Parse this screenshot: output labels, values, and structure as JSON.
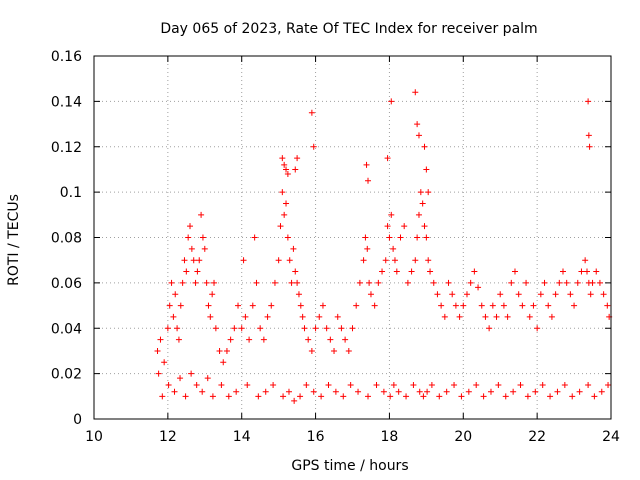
{
  "chart_data": {
    "type": "scatter",
    "title": "Day 065 of 2023, Rate Of TEC Index for receiver palm",
    "xlabel": "GPS time / hours",
    "ylabel": "ROTI / TECUs",
    "xlim": [
      10,
      24
    ],
    "ylim": [
      0,
      0.16
    ],
    "x_ticks": [
      10,
      12,
      14,
      16,
      18,
      20,
      22,
      24
    ],
    "x_tick_labels": [
      "10",
      "12",
      "14",
      "16",
      "18",
      "20",
      "22",
      "24"
    ],
    "y_ticks": [
      0,
      0.02,
      0.04,
      0.06,
      0.08,
      0.1,
      0.12,
      0.14,
      0.16
    ],
    "y_tick_labels": [
      "0",
      "0.02",
      "0.04",
      "0.06",
      "0.08",
      "0.1",
      "0.12",
      "0.14",
      "0.16"
    ],
    "grid": true,
    "marker": "+",
    "series": [
      {
        "name": "ROTI",
        "color": "#ff0000",
        "x": [
          11.72,
          11.75,
          11.8,
          11.9,
          12.0,
          12.05,
          12.1,
          12.15,
          12.2,
          12.25,
          12.3,
          12.35,
          12.4,
          12.45,
          12.5,
          12.55,
          12.6,
          12.65,
          12.7,
          12.75,
          12.8,
          12.85,
          12.9,
          12.95,
          13.0,
          13.05,
          13.1,
          13.15,
          13.2,
          13.25,
          13.3,
          13.4,
          13.5,
          13.6,
          13.7,
          13.8,
          13.9,
          14.0,
          14.05,
          14.1,
          14.2,
          14.3,
          14.35,
          14.4,
          14.5,
          14.6,
          14.7,
          14.8,
          14.9,
          15.0,
          15.05,
          15.1,
          15.15,
          15.2,
          15.25,
          15.3,
          15.35,
          15.4,
          15.45,
          15.5,
          15.55,
          15.6,
          15.65,
          15.7,
          15.8,
          15.9,
          16.0,
          16.1,
          16.2,
          16.3,
          16.4,
          16.5,
          16.6,
          16.7,
          16.8,
          16.9,
          17.0,
          17.1,
          17.2,
          17.3,
          17.35,
          17.4,
          17.45,
          17.5,
          17.6,
          17.7,
          17.8,
          17.9,
          17.95,
          18.0,
          18.05,
          18.1,
          18.15,
          18.2,
          18.3,
          18.4,
          18.5,
          18.6,
          18.7,
          18.75,
          18.8,
          18.85,
          18.9,
          18.95,
          19.0,
          19.05,
          19.1,
          19.2,
          19.3,
          19.4,
          19.5,
          19.6,
          19.7,
          19.8,
          19.9,
          20.0,
          20.1,
          20.2,
          20.3,
          20.4,
          20.5,
          20.6,
          20.7,
          20.8,
          20.9,
          21.0,
          21.1,
          21.2,
          21.3,
          21.4,
          21.5,
          21.6,
          21.7,
          21.8,
          21.9,
          22.0,
          22.1,
          22.2,
          22.3,
          22.4,
          22.5,
          22.6,
          22.7,
          22.8,
          22.9,
          23.0,
          23.1,
          23.2,
          23.3,
          23.35,
          23.4,
          23.45,
          23.5,
          23.6,
          23.7,
          23.8,
          23.9,
          23.95,
          11.85,
          12.02,
          12.18,
          12.33,
          12.48,
          12.63,
          12.78,
          12.93,
          13.08,
          13.22,
          13.45,
          13.65,
          13.85,
          14.15,
          14.45,
          14.65,
          14.85,
          15.12,
          15.28,
          15.42,
          15.58,
          15.75,
          15.95,
          16.15,
          16.35,
          16.55,
          16.75,
          16.95,
          17.15,
          17.42,
          17.65,
          17.85,
          18.02,
          18.12,
          18.25,
          18.45,
          18.65,
          18.82,
          18.92,
          19.02,
          19.15,
          19.35,
          19.55,
          19.75,
          19.95,
          20.15,
          20.35,
          20.55,
          20.75,
          20.95,
          21.15,
          21.35,
          21.55,
          21.75,
          21.95,
          22.15,
          22.35,
          22.55,
          22.75,
          22.95,
          23.15,
          23.38,
          23.55,
          23.75,
          23.92,
          15.45,
          15.5,
          17.95,
          18.05,
          18.7,
          18.75,
          18.8,
          23.38,
          23.4,
          23.42,
          15.1,
          15.15,
          15.2,
          15.25,
          15.9,
          15.95,
          17.38,
          17.42,
          18.95,
          19.0,
          19.05
        ],
        "y": [
          0.03,
          0.02,
          0.035,
          0.025,
          0.04,
          0.05,
          0.06,
          0.045,
          0.055,
          0.04,
          0.035,
          0.05,
          0.06,
          0.07,
          0.065,
          0.08,
          0.085,
          0.075,
          0.07,
          0.06,
          0.065,
          0.07,
          0.09,
          0.08,
          0.075,
          0.06,
          0.05,
          0.045,
          0.055,
          0.06,
          0.04,
          0.03,
          0.025,
          0.03,
          0.035,
          0.04,
          0.05,
          0.04,
          0.07,
          0.045,
          0.035,
          0.05,
          0.08,
          0.06,
          0.04,
          0.035,
          0.045,
          0.05,
          0.06,
          0.07,
          0.085,
          0.1,
          0.09,
          0.095,
          0.08,
          0.07,
          0.06,
          0.075,
          0.065,
          0.06,
          0.055,
          0.05,
          0.045,
          0.04,
          0.035,
          0.03,
          0.04,
          0.045,
          0.05,
          0.04,
          0.035,
          0.03,
          0.045,
          0.04,
          0.035,
          0.03,
          0.04,
          0.05,
          0.06,
          0.07,
          0.08,
          0.075,
          0.06,
          0.055,
          0.05,
          0.06,
          0.065,
          0.07,
          0.085,
          0.08,
          0.09,
          0.075,
          0.07,
          0.065,
          0.08,
          0.085,
          0.06,
          0.065,
          0.07,
          0.08,
          0.09,
          0.1,
          0.095,
          0.085,
          0.08,
          0.07,
          0.065,
          0.06,
          0.055,
          0.05,
          0.045,
          0.06,
          0.055,
          0.05,
          0.045,
          0.05,
          0.055,
          0.06,
          0.065,
          0.058,
          0.05,
          0.045,
          0.04,
          0.05,
          0.045,
          0.055,
          0.05,
          0.045,
          0.06,
          0.065,
          0.055,
          0.05,
          0.06,
          0.045,
          0.05,
          0.04,
          0.055,
          0.06,
          0.05,
          0.045,
          0.055,
          0.06,
          0.065,
          0.06,
          0.055,
          0.05,
          0.06,
          0.065,
          0.07,
          0.065,
          0.06,
          0.055,
          0.06,
          0.065,
          0.06,
          0.055,
          0.05,
          0.045,
          0.01,
          0.015,
          0.012,
          0.018,
          0.01,
          0.02,
          0.015,
          0.012,
          0.018,
          0.01,
          0.015,
          0.01,
          0.012,
          0.015,
          0.01,
          0.012,
          0.015,
          0.01,
          0.012,
          0.008,
          0.01,
          0.015,
          0.012,
          0.01,
          0.015,
          0.012,
          0.01,
          0.015,
          0.012,
          0.01,
          0.015,
          0.012,
          0.01,
          0.015,
          0.012,
          0.01,
          0.015,
          0.012,
          0.01,
          0.012,
          0.015,
          0.01,
          0.012,
          0.015,
          0.01,
          0.012,
          0.015,
          0.01,
          0.012,
          0.015,
          0.01,
          0.012,
          0.015,
          0.01,
          0.012,
          0.015,
          0.01,
          0.012,
          0.015,
          0.01,
          0.012,
          0.015,
          0.01,
          0.012,
          0.015,
          0.11,
          0.115,
          0.115,
          0.14,
          0.144,
          0.13,
          0.125,
          0.14,
          0.125,
          0.12,
          0.115,
          0.112,
          0.11,
          0.108,
          0.135,
          0.12,
          0.112,
          0.105,
          0.12,
          0.11,
          0.1
        ]
      }
    ]
  }
}
